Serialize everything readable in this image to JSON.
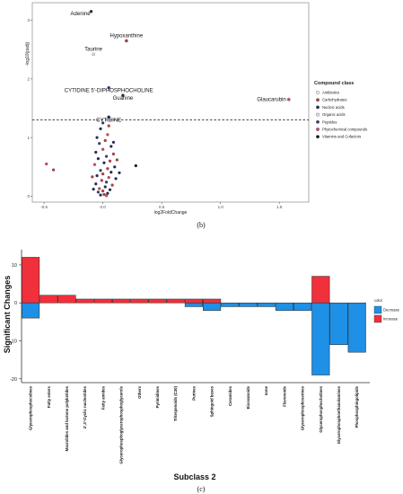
{
  "figure_b": {
    "caption": "(b)",
    "chart_data": {
      "type": "scatter",
      "xlabel": "log2FoldChange",
      "ylabel": "-log10(padj)",
      "xlim": [
        -0.6,
        1.75
      ],
      "ylim": [
        -0.1,
        3.3
      ],
      "x_ticks": [
        "-0.5",
        "0.0",
        "0.5",
        "1.0",
        "1.5"
      ],
      "y_ticks": [
        "0",
        "1",
        "2",
        "3"
      ],
      "threshold_y": 1.3,
      "grid": false,
      "legend_title": "Compound class",
      "legend_position": "right",
      "classes": [
        {
          "name": "Antibiotics",
          "color": "#ffffff"
        },
        {
          "name": "Carbohydrates",
          "color": "#c23b3b"
        },
        {
          "name": "Nucleic acids",
          "color": "#1f2a5a"
        },
        {
          "name": "Organic acids",
          "color": "#e8e8e8"
        },
        {
          "name": "Peptides",
          "color": "#2f3f7a"
        },
        {
          "name": "Phytochemical compounds",
          "color": "#d94a5a"
        },
        {
          "name": "Vitamins and Cofactors",
          "color": "#111111"
        }
      ],
      "labeled_points": [
        {
          "label": "Adenine",
          "x": -0.1,
          "y": 3.15,
          "cls": 2
        },
        {
          "label": "Hypoxanthine",
          "x": 0.2,
          "y": 2.65,
          "cls": 1
        },
        {
          "label": "Taurine",
          "x": -0.08,
          "y": 2.42,
          "cls": 3
        },
        {
          "label": "CYTIDINE 5'-DIPHOSPHOCHOLINE",
          "x": 0.05,
          "y": 1.85,
          "cls": 4
        },
        {
          "label": "Guanine",
          "x": 0.17,
          "y": 1.72,
          "cls": 2
        },
        {
          "label": "Glaucarubin",
          "x": 1.58,
          "y": 1.65,
          "cls": 5
        },
        {
          "label": "CYTIDINE",
          "x": 0.05,
          "y": 1.35,
          "cls": 2
        }
      ],
      "points": [
        {
          "x": -0.48,
          "y": 0.55,
          "cls": 5
        },
        {
          "x": -0.42,
          "y": 0.45,
          "cls": 1
        },
        {
          "x": 0.28,
          "y": 0.52,
          "cls": 6
        },
        {
          "x": 0.0,
          "y": 1.25,
          "cls": 4
        },
        {
          "x": 0.05,
          "y": 1.2,
          "cls": 1
        },
        {
          "x": -0.02,
          "y": 1.15,
          "cls": 2
        },
        {
          "x": 0.04,
          "y": 1.05,
          "cls": 5
        },
        {
          "x": -0.05,
          "y": 1.0,
          "cls": 2
        },
        {
          "x": 0.02,
          "y": 0.95,
          "cls": 1
        },
        {
          "x": -0.03,
          "y": 0.9,
          "cls": 4
        },
        {
          "x": 0.07,
          "y": 0.85,
          "cls": 2
        },
        {
          "x": 0.0,
          "y": 0.8,
          "cls": 5
        },
        {
          "x": -0.06,
          "y": 0.75,
          "cls": 2
        },
        {
          "x": 0.09,
          "y": 0.72,
          "cls": 1
        },
        {
          "x": 0.03,
          "y": 0.68,
          "cls": 4
        },
        {
          "x": -0.04,
          "y": 0.64,
          "cls": 2
        },
        {
          "x": 0.06,
          "y": 0.6,
          "cls": 1
        },
        {
          "x": 0.01,
          "y": 0.57,
          "cls": 2
        },
        {
          "x": -0.07,
          "y": 0.54,
          "cls": 5
        },
        {
          "x": 0.1,
          "y": 0.5,
          "cls": 2
        },
        {
          "x": 0.04,
          "y": 0.47,
          "cls": 1
        },
        {
          "x": -0.02,
          "y": 0.44,
          "cls": 4
        },
        {
          "x": 0.07,
          "y": 0.41,
          "cls": 2
        },
        {
          "x": 0.0,
          "y": 0.38,
          "cls": 1
        },
        {
          "x": -0.05,
          "y": 0.35,
          "cls": 2
        },
        {
          "x": 0.05,
          "y": 0.32,
          "cls": 5
        },
        {
          "x": 0.11,
          "y": 0.3,
          "cls": 2
        },
        {
          "x": -0.01,
          "y": 0.27,
          "cls": 1
        },
        {
          "x": 0.03,
          "y": 0.24,
          "cls": 4
        },
        {
          "x": -0.06,
          "y": 0.21,
          "cls": 2
        },
        {
          "x": 0.08,
          "y": 0.19,
          "cls": 1
        },
        {
          "x": 0.02,
          "y": 0.16,
          "cls": 2
        },
        {
          "x": -0.03,
          "y": 0.13,
          "cls": 5
        },
        {
          "x": 0.06,
          "y": 0.11,
          "cls": 2
        },
        {
          "x": 0.0,
          "y": 0.09,
          "cls": 1
        },
        {
          "x": -0.04,
          "y": 0.07,
          "cls": 4
        },
        {
          "x": 0.04,
          "y": 0.05,
          "cls": 2
        },
        {
          "x": 0.01,
          "y": 0.03,
          "cls": 1
        },
        {
          "x": -0.02,
          "y": 0.02,
          "cls": 2
        },
        {
          "x": 0.03,
          "y": 0.01,
          "cls": 5
        },
        {
          "x": 0.12,
          "y": 0.62,
          "cls": 1
        },
        {
          "x": 0.14,
          "y": 0.4,
          "cls": 2
        },
        {
          "x": -0.09,
          "y": 0.33,
          "cls": 1
        },
        {
          "x": 0.09,
          "y": 0.92,
          "cls": 2
        },
        {
          "x": -0.08,
          "y": 0.12,
          "cls": 2
        }
      ]
    }
  },
  "figure_c": {
    "caption": "(c)",
    "chart_data": {
      "type": "bar",
      "xlabel": "Subclass 2",
      "ylabel": "Significant Changes",
      "ylim": [
        -21,
        14
      ],
      "y_ticks": [
        10,
        0,
        -10,
        -20
      ],
      "legend_title": "color",
      "legend_position": "right",
      "categories": [
        "Glycerophosphocolines",
        "Fatty esters",
        "Macrolides and lactone polyketides",
        "2',3'-Cyclic nucleotides",
        "Fatty amides",
        "Glycerophosphoglycerophosphoglycerols",
        "Others",
        "Pyrimidines",
        "Triterpenoids (C30)",
        "Purines",
        "Sphingoid bases",
        "Ceramides",
        "Eicosanoids",
        "none",
        "Flavonoids",
        "Glycerophosphoserines",
        "Glycerophosphocholines",
        "Glycerophosphoethanolamines",
        "Phosphosphingolipids"
      ],
      "series": [
        {
          "name": "Decrease",
          "color": "#1e90e6",
          "values": [
            -4,
            0,
            0,
            0,
            0,
            0,
            0,
            0,
            0,
            -1,
            -2,
            -1,
            -1,
            -1,
            -2,
            -2,
            -19,
            -11,
            -13
          ]
        },
        {
          "name": "Increase",
          "color": "#f0303a",
          "values": [
            12,
            2,
            2,
            1,
            1,
            1,
            1,
            1,
            1,
            1,
            1,
            0,
            0,
            0,
            0,
            0,
            7,
            0,
            0
          ]
        }
      ]
    }
  }
}
